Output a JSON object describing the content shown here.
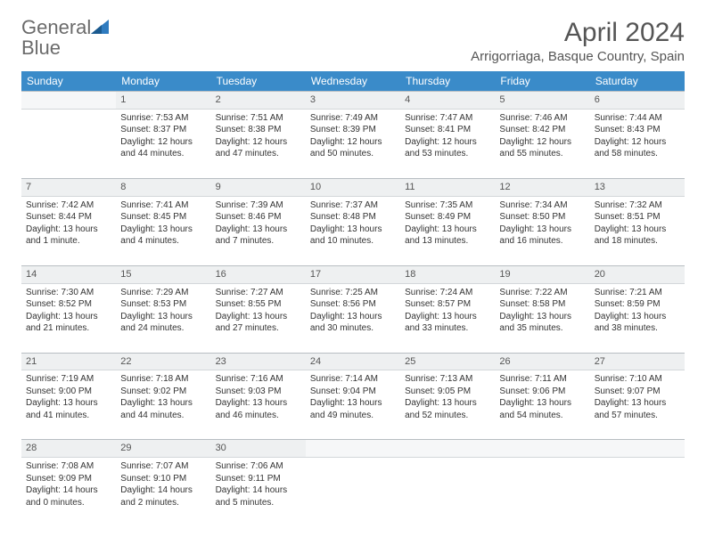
{
  "brand": {
    "part1": "General",
    "part2": "Blue"
  },
  "title": "April 2024",
  "location": "Arrigorriaga, Basque Country, Spain",
  "colors": {
    "header_bg": "#3a8bc9",
    "header_text": "#ffffff",
    "daynum_bg": "#eef0f1",
    "daynum_border": "#b8bec2",
    "text": "#333333",
    "brand_gray": "#6b6b6b",
    "brand_blue": "#2f7bbf"
  },
  "days": [
    "Sunday",
    "Monday",
    "Tuesday",
    "Wednesday",
    "Thursday",
    "Friday",
    "Saturday"
  ],
  "weeks": [
    {
      "nums": [
        "",
        "1",
        "2",
        "3",
        "4",
        "5",
        "6"
      ],
      "cells": [
        null,
        {
          "sunrise": "Sunrise: 7:53 AM",
          "sunset": "Sunset: 8:37 PM",
          "day1": "Daylight: 12 hours",
          "day2": "and 44 minutes."
        },
        {
          "sunrise": "Sunrise: 7:51 AM",
          "sunset": "Sunset: 8:38 PM",
          "day1": "Daylight: 12 hours",
          "day2": "and 47 minutes."
        },
        {
          "sunrise": "Sunrise: 7:49 AM",
          "sunset": "Sunset: 8:39 PM",
          "day1": "Daylight: 12 hours",
          "day2": "and 50 minutes."
        },
        {
          "sunrise": "Sunrise: 7:47 AM",
          "sunset": "Sunset: 8:41 PM",
          "day1": "Daylight: 12 hours",
          "day2": "and 53 minutes."
        },
        {
          "sunrise": "Sunrise: 7:46 AM",
          "sunset": "Sunset: 8:42 PM",
          "day1": "Daylight: 12 hours",
          "day2": "and 55 minutes."
        },
        {
          "sunrise": "Sunrise: 7:44 AM",
          "sunset": "Sunset: 8:43 PM",
          "day1": "Daylight: 12 hours",
          "day2": "and 58 minutes."
        }
      ]
    },
    {
      "nums": [
        "7",
        "8",
        "9",
        "10",
        "11",
        "12",
        "13"
      ],
      "cells": [
        {
          "sunrise": "Sunrise: 7:42 AM",
          "sunset": "Sunset: 8:44 PM",
          "day1": "Daylight: 13 hours",
          "day2": "and 1 minute."
        },
        {
          "sunrise": "Sunrise: 7:41 AM",
          "sunset": "Sunset: 8:45 PM",
          "day1": "Daylight: 13 hours",
          "day2": "and 4 minutes."
        },
        {
          "sunrise": "Sunrise: 7:39 AM",
          "sunset": "Sunset: 8:46 PM",
          "day1": "Daylight: 13 hours",
          "day2": "and 7 minutes."
        },
        {
          "sunrise": "Sunrise: 7:37 AM",
          "sunset": "Sunset: 8:48 PM",
          "day1": "Daylight: 13 hours",
          "day2": "and 10 minutes."
        },
        {
          "sunrise": "Sunrise: 7:35 AM",
          "sunset": "Sunset: 8:49 PM",
          "day1": "Daylight: 13 hours",
          "day2": "and 13 minutes."
        },
        {
          "sunrise": "Sunrise: 7:34 AM",
          "sunset": "Sunset: 8:50 PM",
          "day1": "Daylight: 13 hours",
          "day2": "and 16 minutes."
        },
        {
          "sunrise": "Sunrise: 7:32 AM",
          "sunset": "Sunset: 8:51 PM",
          "day1": "Daylight: 13 hours",
          "day2": "and 18 minutes."
        }
      ]
    },
    {
      "nums": [
        "14",
        "15",
        "16",
        "17",
        "18",
        "19",
        "20"
      ],
      "cells": [
        {
          "sunrise": "Sunrise: 7:30 AM",
          "sunset": "Sunset: 8:52 PM",
          "day1": "Daylight: 13 hours",
          "day2": "and 21 minutes."
        },
        {
          "sunrise": "Sunrise: 7:29 AM",
          "sunset": "Sunset: 8:53 PM",
          "day1": "Daylight: 13 hours",
          "day2": "and 24 minutes."
        },
        {
          "sunrise": "Sunrise: 7:27 AM",
          "sunset": "Sunset: 8:55 PM",
          "day1": "Daylight: 13 hours",
          "day2": "and 27 minutes."
        },
        {
          "sunrise": "Sunrise: 7:25 AM",
          "sunset": "Sunset: 8:56 PM",
          "day1": "Daylight: 13 hours",
          "day2": "and 30 minutes."
        },
        {
          "sunrise": "Sunrise: 7:24 AM",
          "sunset": "Sunset: 8:57 PM",
          "day1": "Daylight: 13 hours",
          "day2": "and 33 minutes."
        },
        {
          "sunrise": "Sunrise: 7:22 AM",
          "sunset": "Sunset: 8:58 PM",
          "day1": "Daylight: 13 hours",
          "day2": "and 35 minutes."
        },
        {
          "sunrise": "Sunrise: 7:21 AM",
          "sunset": "Sunset: 8:59 PM",
          "day1": "Daylight: 13 hours",
          "day2": "and 38 minutes."
        }
      ]
    },
    {
      "nums": [
        "21",
        "22",
        "23",
        "24",
        "25",
        "26",
        "27"
      ],
      "cells": [
        {
          "sunrise": "Sunrise: 7:19 AM",
          "sunset": "Sunset: 9:00 PM",
          "day1": "Daylight: 13 hours",
          "day2": "and 41 minutes."
        },
        {
          "sunrise": "Sunrise: 7:18 AM",
          "sunset": "Sunset: 9:02 PM",
          "day1": "Daylight: 13 hours",
          "day2": "and 44 minutes."
        },
        {
          "sunrise": "Sunrise: 7:16 AM",
          "sunset": "Sunset: 9:03 PM",
          "day1": "Daylight: 13 hours",
          "day2": "and 46 minutes."
        },
        {
          "sunrise": "Sunrise: 7:14 AM",
          "sunset": "Sunset: 9:04 PM",
          "day1": "Daylight: 13 hours",
          "day2": "and 49 minutes."
        },
        {
          "sunrise": "Sunrise: 7:13 AM",
          "sunset": "Sunset: 9:05 PM",
          "day1": "Daylight: 13 hours",
          "day2": "and 52 minutes."
        },
        {
          "sunrise": "Sunrise: 7:11 AM",
          "sunset": "Sunset: 9:06 PM",
          "day1": "Daylight: 13 hours",
          "day2": "and 54 minutes."
        },
        {
          "sunrise": "Sunrise: 7:10 AM",
          "sunset": "Sunset: 9:07 PM",
          "day1": "Daylight: 13 hours",
          "day2": "and 57 minutes."
        }
      ]
    },
    {
      "nums": [
        "28",
        "29",
        "30",
        "",
        "",
        "",
        ""
      ],
      "cells": [
        {
          "sunrise": "Sunrise: 7:08 AM",
          "sunset": "Sunset: 9:09 PM",
          "day1": "Daylight: 14 hours",
          "day2": "and 0 minutes."
        },
        {
          "sunrise": "Sunrise: 7:07 AM",
          "sunset": "Sunset: 9:10 PM",
          "day1": "Daylight: 14 hours",
          "day2": "and 2 minutes."
        },
        {
          "sunrise": "Sunrise: 7:06 AM",
          "sunset": "Sunset: 9:11 PM",
          "day1": "Daylight: 14 hours",
          "day2": "and 5 minutes."
        },
        null,
        null,
        null,
        null
      ]
    }
  ]
}
